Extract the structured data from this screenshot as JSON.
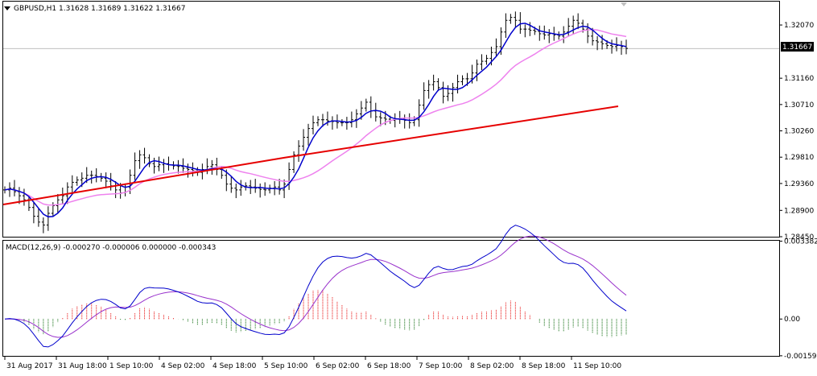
{
  "window": {
    "symbol_header": "GBPUSD,H1  1.31628 1.31689 1.31622 1.31667",
    "scroll_marker_icon": "triangle-down-icon"
  },
  "price_panel": {
    "current_price": "1.31667",
    "price_line_color": "#c0c0c0",
    "y_ticks": [
      "1.32070",
      "1.31160",
      "1.30710",
      "1.30260",
      "1.29810",
      "1.29360",
      "1.28900",
      "1.28450"
    ],
    "y_range": [
      1.2845,
      1.3247
    ]
  },
  "macd_panel": {
    "header": "MACD(12,26,9) -0.000270 -0.000006 0.000000 -0.000343",
    "y_ticks": [
      "0.003382",
      "0.00",
      "-0.001596"
    ],
    "y_range": [
      -0.0016,
      0.0034
    ]
  },
  "time_axis": {
    "labels": [
      "31 Aug 2017",
      "31 Aug 18:00",
      "1 Sep 10:00",
      "4 Sep 02:00",
      "4 Sep 18:00",
      "5 Sep 10:00",
      "6 Sep 02:00",
      "6 Sep 18:00",
      "7 Sep 10:00",
      "8 Sep 02:00",
      "8 Sep 18:00",
      "11 Sep 10:00"
    ]
  },
  "chart_data": [
    {
      "type": "line",
      "subtype": "ohlc-bars",
      "title": "GBPUSD,H1",
      "x_labels": [
        "31 Aug 2017",
        "31 Aug 18:00",
        "1 Sep 10:00",
        "4 Sep 02:00",
        "4 Sep 18:00",
        "5 Sep 10:00",
        "6 Sep 02:00",
        "6 Sep 18:00",
        "7 Sep 10:00",
        "8 Sep 02:00",
        "8 Sep 18:00",
        "11 Sep 10:00"
      ],
      "ylim": [
        1.2845,
        1.3247
      ],
      "close": [
        1.2925,
        1.2928,
        1.2922,
        1.2915,
        1.2908,
        1.2895,
        1.288,
        1.287,
        1.2865,
        1.2885,
        1.2898,
        1.2908,
        1.2915,
        1.293,
        1.2938,
        1.2942,
        1.2945,
        1.295,
        1.295,
        1.2948,
        1.2945,
        1.294,
        1.2932,
        1.2925,
        1.292,
        1.293,
        1.295,
        1.2975,
        1.2985,
        1.298,
        1.297,
        1.2965,
        1.2968,
        1.297,
        1.2968,
        1.2966,
        1.2965,
        1.2962,
        1.296,
        1.2958,
        1.2955,
        1.296,
        1.2965,
        1.2968,
        1.296,
        1.295,
        1.2935,
        1.2928,
        1.2925,
        1.293,
        1.2932,
        1.293,
        1.2928,
        1.2926,
        1.2925,
        1.2928,
        1.293,
        1.2925,
        1.2935,
        1.296,
        1.2985,
        1.3,
        1.3015,
        1.303,
        1.304,
        1.3045,
        1.3045,
        1.3043,
        1.3042,
        1.304,
        1.304,
        1.304,
        1.3045,
        1.3055,
        1.3065,
        1.3075,
        1.306,
        1.305,
        1.3048,
        1.3046,
        1.3044,
        1.3046,
        1.3046,
        1.3044,
        1.304,
        1.3045,
        1.307,
        1.3095,
        1.3105,
        1.311,
        1.31,
        1.3085,
        1.309,
        1.31,
        1.311,
        1.3115,
        1.3115,
        1.3125,
        1.314,
        1.3145,
        1.315,
        1.316,
        1.317,
        1.3195,
        1.3215,
        1.322,
        1.3215,
        1.32,
        1.32,
        1.3198,
        1.3196,
        1.3192,
        1.319,
        1.3192,
        1.319,
        1.3188,
        1.3195,
        1.3205,
        1.3215,
        1.321,
        1.32,
        1.3188,
        1.318,
        1.3178,
        1.3175,
        1.3172,
        1.317,
        1.3172,
        1.317,
        1.3167
      ],
      "ma_fast_color": "#0000cc",
      "ma_mid_color": "#ee82ee",
      "ma_slow_color": "#e60000",
      "ma_slow": [
        1.29,
        1.298,
        1.3068
      ]
    },
    {
      "type": "line",
      "subtype": "macd-histogram",
      "title": "MACD(12,26,9)",
      "ylim": [
        -0.0016,
        0.0034
      ],
      "histogram_up_color": "#e60000",
      "histogram_down_color": "#006400",
      "macd_color": "#0000cc",
      "signal_color": "#9932cc"
    }
  ]
}
